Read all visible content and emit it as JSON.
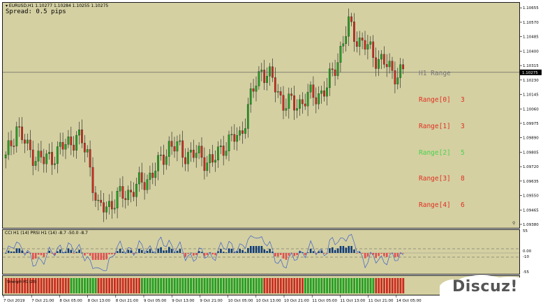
{
  "chart": {
    "symbol_label": "▾ EURUSD,H1  1.10277 1.10284 1.10255 1.10275",
    "spread_label": "Spread: 0.5 pips",
    "current_price": "1.10275",
    "price_min": 1.0938,
    "price_max": 1.1066,
    "price_ticks": [
      "1.10655",
      "1.10570",
      "1.10485",
      "1.10400",
      "1.10315",
      "1.10230",
      "1.10145",
      "1.10060",
      "1.09975",
      "1.09890",
      "1.09805",
      "1.09720",
      "1.09635",
      "1.09550",
      "1.09465",
      "1.09380"
    ],
    "colors": {
      "background": "#d4d0a2",
      "bull": "#22a022",
      "bear": "#cc2a1e",
      "osc_line": "#3c5fc8",
      "osc_bar": "#103c78",
      "osc_bar_neg": "#e05050"
    }
  },
  "range_panel": {
    "title": "H1 Range",
    "title_color": "#777777",
    "rows": [
      {
        "label": "Range[0]",
        "value": "3",
        "color": "#e03020"
      },
      {
        "label": "Range[1]",
        "value": "3",
        "color": "#e03020"
      },
      {
        "label": "Range[2]",
        "value": "5",
        "color": "#4ad24a"
      },
      {
        "label": "Range[3]",
        "value": "8",
        "color": "#e03020"
      },
      {
        "label": "Range[4]",
        "value": "6",
        "color": "#e03020"
      }
    ]
  },
  "oscillator": {
    "label": "CCI H1 (14) PRSI H1 (14) -8.7 -50.0 -8.7",
    "axis_labels": [
      "55",
      "0.00",
      "-10",
      "-55"
    ],
    "bar_strip_label": "Strength H1 (20)"
  },
  "time_axis": {
    "labels": [
      "7 Oct 2019",
      "7 Oct 21:00",
      "8 Oct 05:00",
      "8 Oct 13:00",
      "8 Oct 21:00",
      "9 Oct 05:00",
      "9 Oct 13:00",
      "9 Oct 21:00",
      "10 Oct 05:00",
      "10 Oct 13:00",
      "10 Oct 21:00",
      "11 Oct 05:00",
      "11 Oct 13:00",
      "11 Oct 21:00",
      "14 Oct 05:00"
    ]
  },
  "watermark": {
    "text": "Discuz!"
  }
}
